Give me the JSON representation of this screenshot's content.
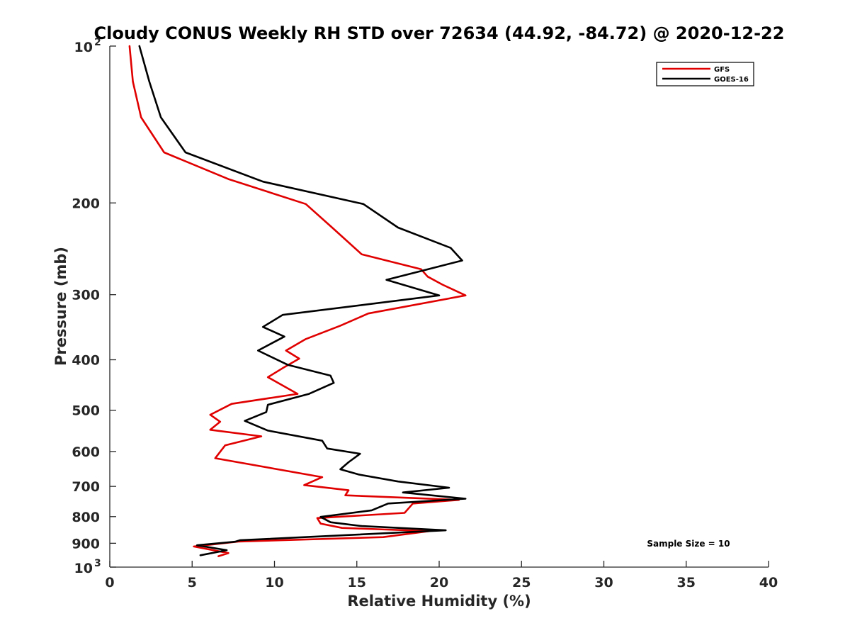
{
  "chart_data": {
    "type": "line",
    "title": "Cloudy CONUS Weekly RH STD over 72634 (44.92, -84.72) @ 2020-12-22",
    "xlabel": "Relative Humidity (%)",
    "ylabel": "Pressure (mb)",
    "xlim": [
      0,
      40
    ],
    "ylim": [
      100,
      1000
    ],
    "y_scale": "log",
    "y_reversed": true,
    "grid": false,
    "legend_position": "top-right",
    "x_ticks": [
      "0",
      "5",
      "10",
      "15",
      "20",
      "25",
      "30",
      "35",
      "40"
    ],
    "y_ticks": [
      {
        "value": 100,
        "base": "10",
        "exp": "2"
      },
      {
        "value": 200,
        "label": "200"
      },
      {
        "value": 300,
        "label": "300"
      },
      {
        "value": 400,
        "label": "400"
      },
      {
        "value": 500,
        "label": "500"
      },
      {
        "value": 600,
        "label": "600"
      },
      {
        "value": 700,
        "label": "700"
      },
      {
        "value": 800,
        "label": "800"
      },
      {
        "value": 900,
        "label": "900"
      },
      {
        "value": 1000,
        "base": "10",
        "exp": "3"
      }
    ],
    "annotation": "Sample Size = 10",
    "series": [
      {
        "name": "GFS",
        "color": "#e00000",
        "points": [
          [
            1.2,
            100
          ],
          [
            1.4,
            117
          ],
          [
            1.9,
            137
          ],
          [
            3.3,
            160
          ],
          [
            7.2,
            180
          ],
          [
            11.9,
            201
          ],
          [
            13.5,
            223
          ],
          [
            15.3,
            251
          ],
          [
            18.9,
            268
          ],
          [
            19.3,
            277
          ],
          [
            20.2,
            287
          ],
          [
            21.6,
            301
          ],
          [
            15.7,
            326
          ],
          [
            14.0,
            344
          ],
          [
            11.9,
            365
          ],
          [
            10.7,
            384
          ],
          [
            11.5,
            398
          ],
          [
            10.5,
            415
          ],
          [
            9.6,
            432
          ],
          [
            11.4,
            465
          ],
          [
            7.4,
            486
          ],
          [
            6.1,
            510
          ],
          [
            6.7,
            526
          ],
          [
            6.1,
            545
          ],
          [
            9.2,
            561
          ],
          [
            7.0,
            584
          ],
          [
            6.4,
            618
          ],
          [
            12.9,
            672
          ],
          [
            11.8,
            696
          ],
          [
            14.5,
            712
          ],
          [
            14.3,
            728
          ],
          [
            21.2,
            743
          ],
          [
            18.4,
            755
          ],
          [
            18.2,
            768
          ],
          [
            17.9,
            787
          ],
          [
            12.6,
            805
          ],
          [
            12.8,
            825
          ],
          [
            14.1,
            841
          ],
          [
            19.4,
            853
          ],
          [
            16.6,
            876
          ],
          [
            7.8,
            893
          ],
          [
            5.1,
            913
          ],
          [
            7.2,
            940
          ],
          [
            6.6,
            953
          ]
        ]
      },
      {
        "name": "GOES-16",
        "color": "#000000",
        "points": [
          [
            1.8,
            100
          ],
          [
            2.4,
            117
          ],
          [
            3.1,
            137
          ],
          [
            4.6,
            160
          ],
          [
            9.3,
            182
          ],
          [
            15.4,
            201
          ],
          [
            17.5,
            223
          ],
          [
            20.7,
            244
          ],
          [
            21.4,
            258
          ],
          [
            16.8,
            281
          ],
          [
            20.0,
            301
          ],
          [
            10.5,
            328
          ],
          [
            9.3,
            346
          ],
          [
            10.6,
            361
          ],
          [
            9.0,
            384
          ],
          [
            10.8,
            409
          ],
          [
            13.4,
            429
          ],
          [
            13.6,
            443
          ],
          [
            12.1,
            465
          ],
          [
            9.6,
            488
          ],
          [
            9.5,
            504
          ],
          [
            8.2,
            524
          ],
          [
            9.6,
            547
          ],
          [
            12.9,
            572
          ],
          [
            13.2,
            592
          ],
          [
            15.2,
            606
          ],
          [
            14.5,
            629
          ],
          [
            14.0,
            649
          ],
          [
            15.1,
            664
          ],
          [
            17.5,
            685
          ],
          [
            20.6,
            704
          ],
          [
            17.8,
            719
          ],
          [
            21.6,
            739
          ],
          [
            16.9,
            755
          ],
          [
            15.9,
            778
          ],
          [
            12.8,
            801
          ],
          [
            13.4,
            820
          ],
          [
            15.3,
            834
          ],
          [
            20.4,
            850
          ],
          [
            7.9,
            888
          ],
          [
            7.6,
            894
          ],
          [
            5.3,
            908
          ],
          [
            7.1,
            928
          ],
          [
            5.5,
            949
          ]
        ]
      }
    ]
  }
}
